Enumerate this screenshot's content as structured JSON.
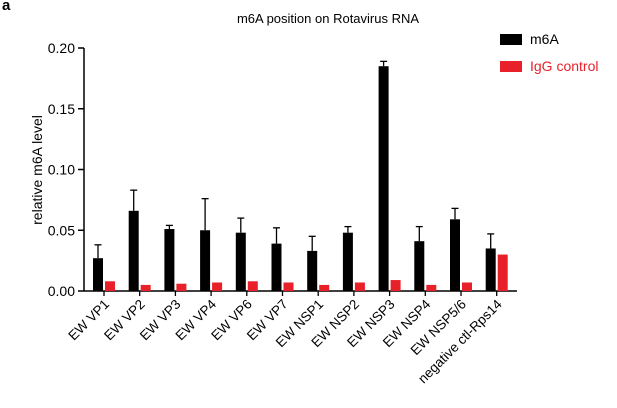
{
  "panel_label": "a",
  "chart_data": {
    "type": "bar",
    "title": "m6A position on Rotavirus RNA",
    "xlabel": "",
    "ylabel": "relative m6A level",
    "ylim": [
      0,
      0.2
    ],
    "yticks": [
      "0.00",
      "0.05",
      "0.10",
      "0.15",
      "0.20"
    ],
    "tick_values": [
      0,
      0.05,
      0.1,
      0.15,
      0.2
    ],
    "categories": [
      "EW VP1",
      "EW VP2",
      "EW VP3",
      "EW VP4",
      "EW VP6",
      "EW VP7",
      "EW NSP1",
      "EW NSP2",
      "EW NSP3",
      "EW NSP4",
      "EW NSP5/6",
      "negative ctl-Rps14"
    ],
    "legend_position": "top-right",
    "grid": false,
    "series": [
      {
        "name": "m6A",
        "color": "#000000",
        "values": [
          0.027,
          0.066,
          0.051,
          0.05,
          0.048,
          0.039,
          0.033,
          0.048,
          0.185,
          0.041,
          0.059,
          0.035
        ],
        "errors": [
          0.011,
          0.017,
          0.003,
          0.026,
          0.012,
          0.013,
          0.012,
          0.005,
          0.004,
          0.012,
          0.009,
          0.012
        ]
      },
      {
        "name": "IgG control",
        "color": "#e8202a",
        "values": [
          0.008,
          0.005,
          0.006,
          0.007,
          0.008,
          0.007,
          0.005,
          0.007,
          0.009,
          0.005,
          0.007,
          0.03
        ],
        "errors": [
          0,
          0,
          0,
          0,
          0,
          0,
          0,
          0,
          0,
          0,
          0,
          0
        ]
      }
    ]
  }
}
